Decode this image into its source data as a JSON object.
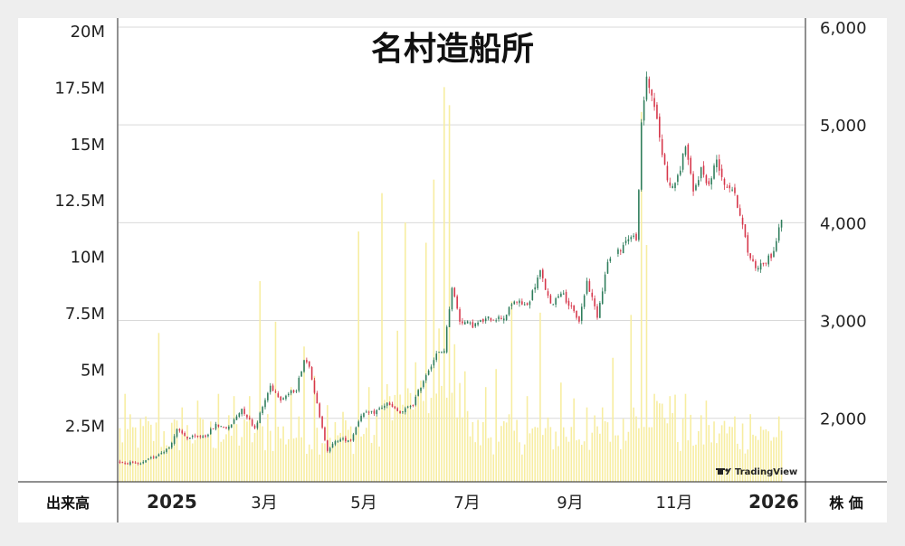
{
  "colors": {
    "frame_bg": "#eeeeee",
    "plot_bg": "#ffffff",
    "volume": "#f7eda0",
    "up_candle": "#2e7d5b",
    "down_candle": "#d6364a",
    "grid": "#d9d9d9",
    "axis": "#222222"
  },
  "watermark": "TradingView",
  "chart_data": {
    "type": "candlestick",
    "title": "名村造船所",
    "left_axis_label": "出来高",
    "right_axis_label": "株 価",
    "left_ticks": [
      "2.5M",
      "5M",
      "7.5M",
      "10M",
      "12.5M",
      "15M",
      "17.5M",
      "20M"
    ],
    "right_ticks": [
      "2,000",
      "3,000",
      "4,000",
      "5,000",
      "6,000"
    ],
    "x_labels": [
      "2025",
      "3月",
      "5月",
      "7月",
      "9月",
      "11月",
      "2026"
    ],
    "volume_range_millions": [
      0,
      20
    ],
    "price_range": [
      1350,
      6000
    ],
    "price_close_keyframes": [
      [
        0,
        1550
      ],
      [
        8,
        1530
      ],
      [
        14,
        1620
      ],
      [
        19,
        1700
      ],
      [
        22,
        1880
      ],
      [
        26,
        1800
      ],
      [
        33,
        1820
      ],
      [
        37,
        1930
      ],
      [
        42,
        1900
      ],
      [
        47,
        2100
      ],
      [
        52,
        1900
      ],
      [
        58,
        2330
      ],
      [
        62,
        2200
      ],
      [
        68,
        2300
      ],
      [
        71,
        2600
      ],
      [
        73,
        2550
      ],
      [
        77,
        2000
      ],
      [
        80,
        1680
      ],
      [
        84,
        1780
      ],
      [
        89,
        1780
      ],
      [
        93,
        2040
      ],
      [
        98,
        2060
      ],
      [
        103,
        2150
      ],
      [
        108,
        2050
      ],
      [
        113,
        2150
      ],
      [
        118,
        2450
      ],
      [
        122,
        2650
      ],
      [
        125,
        2700
      ],
      [
        128,
        3350
      ],
      [
        131,
        3000
      ],
      [
        136,
        2950
      ],
      [
        142,
        3020
      ],
      [
        148,
        3030
      ],
      [
        152,
        3200
      ],
      [
        157,
        3150
      ],
      [
        162,
        3500
      ],
      [
        166,
        3150
      ],
      [
        170,
        3300
      ],
      [
        174,
        3120
      ],
      [
        177,
        3000
      ],
      [
        180,
        3400
      ],
      [
        184,
        3050
      ],
      [
        188,
        3600
      ],
      [
        192,
        3700
      ],
      [
        196,
        3850
      ],
      [
        199,
        3850
      ],
      [
        200,
        4300
      ],
      [
        201,
        5000
      ],
      [
        203,
        5500
      ],
      [
        206,
        5200
      ],
      [
        209,
        4700
      ],
      [
        212,
        4350
      ],
      [
        215,
        4450
      ],
      [
        218,
        4800
      ],
      [
        221,
        4300
      ],
      [
        224,
        4550
      ],
      [
        227,
        4380
      ],
      [
        230,
        4650
      ],
      [
        233,
        4400
      ],
      [
        236,
        4350
      ],
      [
        239,
        4100
      ],
      [
        242,
        3700
      ],
      [
        245,
        3550
      ],
      [
        249,
        3600
      ],
      [
        252,
        3700
      ],
      [
        255,
        4050
      ]
    ],
    "volume_spikes_millions": [
      [
        2,
        3.9
      ],
      [
        10,
        2.9
      ],
      [
        15,
        6.6
      ],
      [
        24,
        3.3
      ],
      [
        30,
        3.6
      ],
      [
        38,
        3.9
      ],
      [
        44,
        3.8
      ],
      [
        50,
        3.8
      ],
      [
        54,
        8.9
      ],
      [
        57,
        3.0
      ],
      [
        60,
        7.1
      ],
      [
        66,
        4.2
      ],
      [
        71,
        6.0
      ],
      [
        75,
        4.7
      ],
      [
        80,
        3.4
      ],
      [
        86,
        3.1
      ],
      [
        92,
        11.1
      ],
      [
        96,
        4.2
      ],
      [
        101,
        12.8
      ],
      [
        107,
        6.7
      ],
      [
        110,
        11.5
      ],
      [
        114,
        5.3
      ],
      [
        118,
        10.6
      ],
      [
        121,
        13.4
      ],
      [
        123,
        6.8
      ],
      [
        125,
        17.5
      ],
      [
        127,
        16.7
      ],
      [
        129,
        6.1
      ],
      [
        133,
        4.9
      ],
      [
        141,
        4.2
      ],
      [
        145,
        5.0
      ],
      [
        151,
        8.0
      ],
      [
        157,
        3.8
      ],
      [
        162,
        7.5
      ],
      [
        170,
        4.4
      ],
      [
        175,
        3.7
      ],
      [
        180,
        3.3
      ],
      [
        186,
        3.3
      ],
      [
        190,
        5.5
      ],
      [
        197,
        7.4
      ],
      [
        201,
        16.4
      ],
      [
        203,
        10.5
      ],
      [
        206,
        3.9
      ],
      [
        212,
        3.8
      ],
      [
        218,
        3.9
      ],
      [
        226,
        3.6
      ],
      [
        233,
        2.7
      ],
      [
        237,
        2.9
      ],
      [
        243,
        3.0
      ],
      [
        248,
        2.3
      ],
      [
        254,
        2.9
      ]
    ]
  }
}
